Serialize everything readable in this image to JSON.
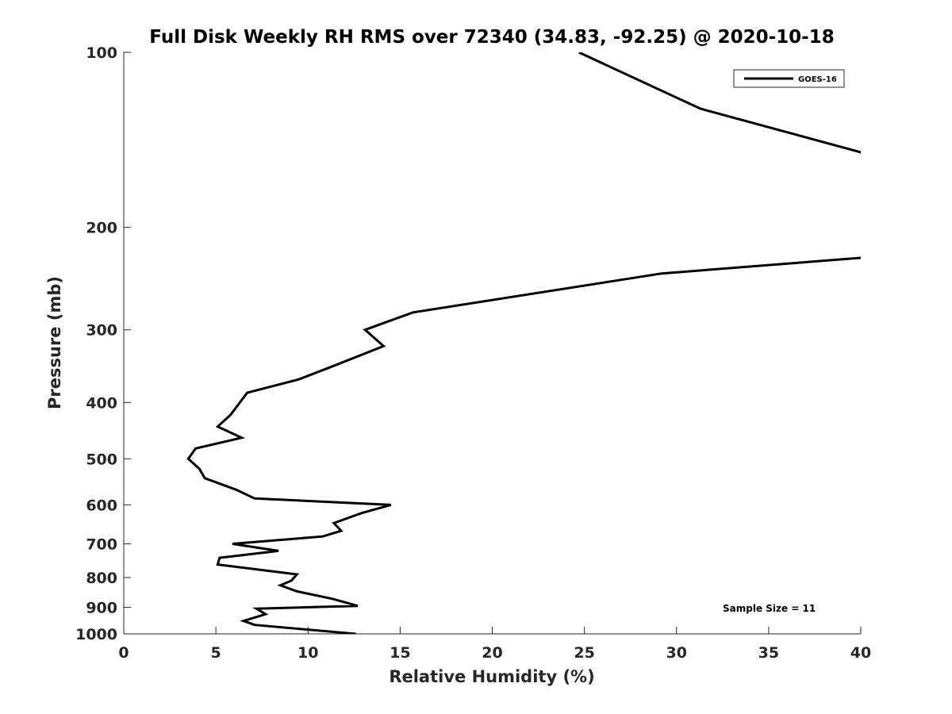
{
  "chart_data": {
    "type": "line",
    "title": "Full Disk Weekly RH RMS over 72340 (34.83, -92.25) @ 2020-10-18",
    "xlabel": "Relative Humidity (%)",
    "ylabel": "Pressure (mb)",
    "xlim": [
      0,
      40
    ],
    "ylim": [
      1000,
      100
    ],
    "yscale": "log",
    "xticks": [
      0,
      5,
      10,
      15,
      20,
      25,
      30,
      35,
      40
    ],
    "yticks": [
      100,
      200,
      300,
      400,
      500,
      600,
      700,
      800,
      900,
      1000
    ],
    "grid": false,
    "legend_position": "top-right",
    "annotation": "Sample Size = 11",
    "series": [
      {
        "name": "GOES-16",
        "color": "#000000",
        "x": [
          24.7,
          31.3,
          40.5,
          40.5,
          29.2,
          15.7,
          13.1,
          14.1,
          11.5,
          9.5,
          6.7,
          5.8,
          5.1,
          6.4,
          3.9,
          3.5,
          4.1,
          4.4,
          6.1,
          7.1,
          14.5,
          12.9,
          11.4,
          11.8,
          10.8,
          5.9,
          8.4,
          5.2,
          5.1,
          9.4,
          9.1,
          8.5,
          9.4,
          11.3,
          12.7,
          7.2,
          7.7,
          6.5,
          7.1,
          12.6
        ],
        "y": [
          100,
          125,
          150,
          225,
          240,
          280,
          300,
          320,
          345,
          365,
          385,
          420,
          440,
          460,
          480,
          500,
          520,
          540,
          565,
          585,
          600,
          620,
          645,
          665,
          680,
          700,
          720,
          740,
          760,
          790,
          810,
          825,
          845,
          870,
          895,
          905,
          925,
          950,
          965,
          1000
        ]
      }
    ]
  }
}
